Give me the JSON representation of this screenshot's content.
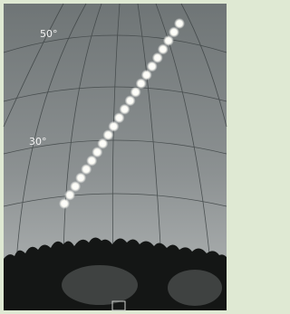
{
  "altitude_labels": [
    "50°",
    "30°"
  ]
}
